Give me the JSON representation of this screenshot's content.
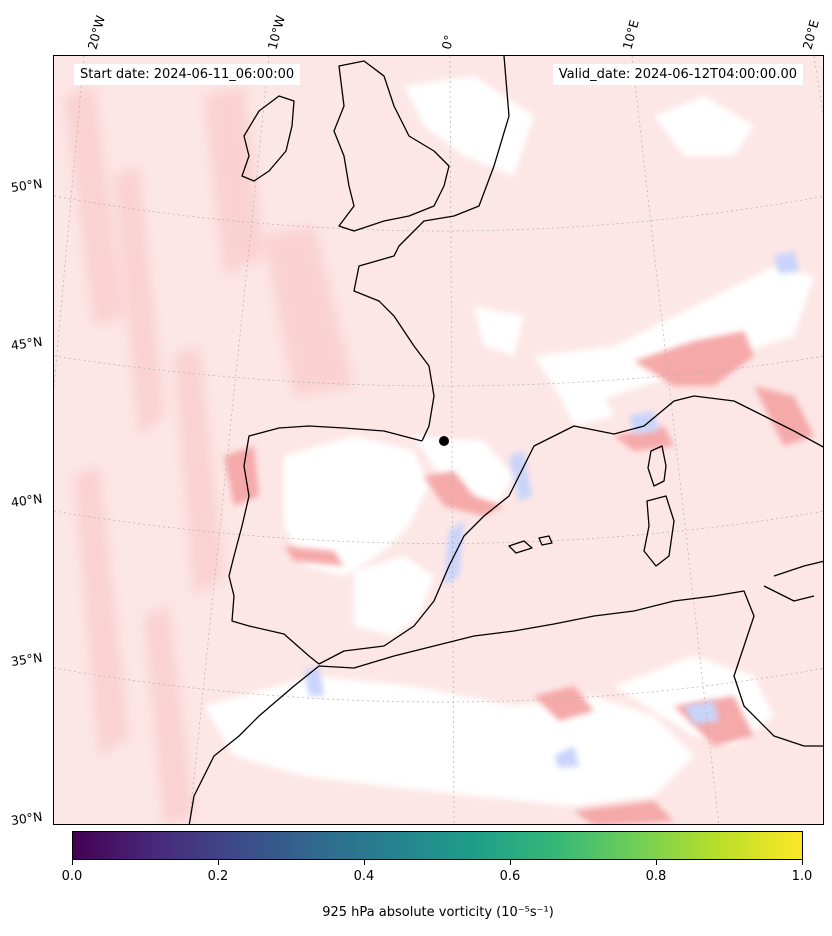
{
  "header": {
    "start_date": "Start date: 2024-06-11_06:00:00",
    "valid_date": "Valid_date: 2024-06-12T04:00:00.00"
  },
  "gridlines": {
    "longitude_labels": [
      "20°W",
      "10°W",
      "0°",
      "10°E",
      "20°E"
    ],
    "latitude_labels": [
      "50°N",
      "45°N",
      "40°N",
      "35°N",
      "30°N"
    ]
  },
  "colorbar": {
    "colormap": "viridis",
    "ticks": [
      "0.0",
      "0.2",
      "0.4",
      "0.6",
      "0.8",
      "1.0"
    ],
    "label": "925 hPa absolute vorticity (10⁻⁵s⁻¹)"
  },
  "map": {
    "region": "Western Europe, Iberian Peninsula, North Africa",
    "field_colors": {
      "positive": "#f6b4b4",
      "light_positive": "#fde3e3",
      "negative": "#c8d2f8",
      "zero": "#ffffff"
    },
    "coastline_color": "#000000"
  }
}
